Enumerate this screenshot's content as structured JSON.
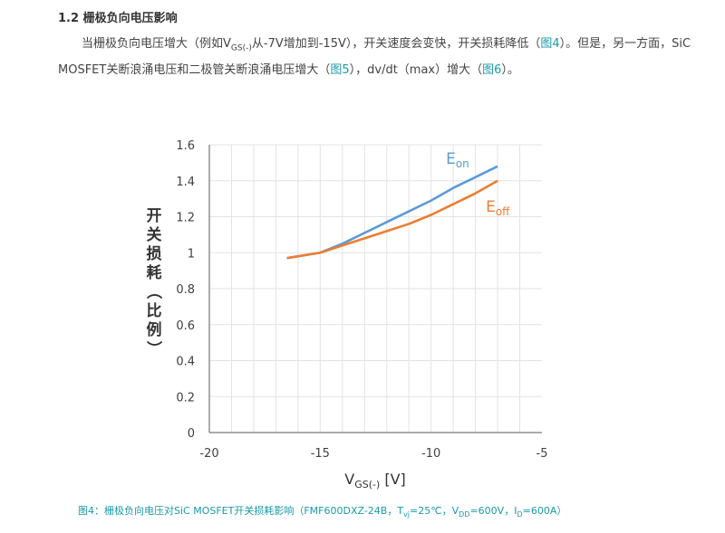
{
  "section": {
    "number": "1.2",
    "title": "栅极负向电压影响"
  },
  "paragraph": {
    "t1": "当栅极负向电压增大（例如V",
    "t1_sub": "GS(-)",
    "t2": "从-7V增加到-15V），开关速度会变快，开关损耗降低（",
    "link1": "图4",
    "t3": "）。但是，另一方面，SiC MOSFET关断浪涌电压和二极管关断浪涌电压增大（",
    "link2": "图5",
    "t4": "），dv/dt（max）增大（",
    "link3": "图6",
    "t5": "）。"
  },
  "chart_data": {
    "type": "line",
    "ylabel": "开关损耗（比例）",
    "xlabel_main": "V",
    "xlabel_sub": "GS(-)",
    "xlabel_unit": " [V]",
    "xlim": [
      -20,
      -5
    ],
    "ylim": [
      0,
      1.6
    ],
    "xticks": [
      -20,
      -15,
      -10,
      -5
    ],
    "yticks": [
      0,
      0.2,
      0.4,
      0.6,
      0.8,
      1,
      1.2,
      1.4,
      1.6
    ],
    "grid": true,
    "series": [
      {
        "name": "E",
        "name_sub": "on",
        "color": "#5b9bd5",
        "x": [
          -16.5,
          -15,
          -14,
          -13,
          -12,
          -11,
          -10,
          -9,
          -8,
          -7
        ],
        "y": [
          0.97,
          1.0,
          1.05,
          1.11,
          1.17,
          1.23,
          1.29,
          1.36,
          1.42,
          1.48
        ]
      },
      {
        "name": "E",
        "name_sub": "off",
        "color": "#ed7d31",
        "x": [
          -16.5,
          -15,
          -14,
          -13,
          -12,
          -11,
          -10,
          -9,
          -8,
          -7
        ],
        "y": [
          0.97,
          1.0,
          1.04,
          1.08,
          1.12,
          1.16,
          1.21,
          1.27,
          1.33,
          1.4
        ]
      }
    ]
  },
  "caption": {
    "prefix": "图4：栅极负向电压对SiC MOSFET开关损耗影响（FMF600DXZ-24B，T",
    "tvj_sub": "vj",
    "mid1": "=25℃，V",
    "vdd_sub": "DD",
    "mid2": "=600V，I",
    "id_sub": "D",
    "suffix": "=600A）"
  }
}
